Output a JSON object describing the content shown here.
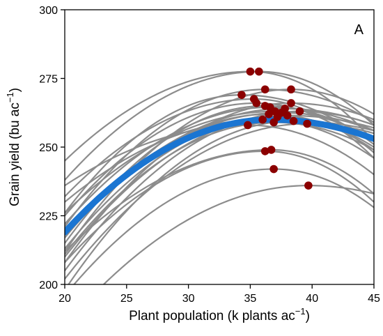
{
  "chart_data": {
    "type": "line",
    "panel_label": "A",
    "xlabel_main": "Plant population (k plants ac",
    "xlabel_sup": "−1",
    "xlabel_end": ")",
    "ylabel_main": "Grain yield (bu ac",
    "ylabel_sup": "−1",
    "ylabel_end": ")",
    "xlim": [
      20,
      45
    ],
    "ylim": [
      200,
      300
    ],
    "xticks": [
      "20",
      "25",
      "30",
      "35",
      "40",
      "45"
    ],
    "yticks": [
      "200",
      "225",
      "250",
      "275",
      "300"
    ],
    "grid": false,
    "colors": {
      "curves": "#8c8c8c",
      "mean_curve": "#1a75d2",
      "optima": "#8b0000"
    },
    "mean_curve": {
      "x_opt": 36.7,
      "y_opt": 260.0,
      "y_at_20": 219,
      "y_at_45": 253
    },
    "curves": [
      {
        "x_opt": 35.0,
        "y_opt": 277.5,
        "y_at_20": 245,
        "y_at_45": 252
      },
      {
        "x_opt": 35.7,
        "y_opt": 277.5,
        "y_at_20": 238,
        "y_at_45": 258
      },
      {
        "x_opt": 34.3,
        "y_opt": 269.0,
        "y_at_20": 226,
        "y_at_45": 251
      },
      {
        "x_opt": 35.3,
        "y_opt": 267.5,
        "y_at_20": 232,
        "y_at_45": 246
      },
      {
        "x_opt": 36.2,
        "y_opt": 271.0,
        "y_at_20": 221,
        "y_at_45": 259
      },
      {
        "x_opt": 38.3,
        "y_opt": 271.0,
        "y_at_20": 212,
        "y_at_45": 262
      },
      {
        "x_opt": 36.2,
        "y_opt": 265.0,
        "y_at_20": 215,
        "y_at_45": 252
      },
      {
        "x_opt": 36.6,
        "y_opt": 264.5,
        "y_at_20": 222,
        "y_at_45": 256
      },
      {
        "x_opt": 37.0,
        "y_opt": 263.0,
        "y_at_20": 226,
        "y_at_45": 253
      },
      {
        "x_opt": 36.5,
        "y_opt": 262.0,
        "y_at_20": 217,
        "y_at_45": 249
      },
      {
        "x_opt": 37.2,
        "y_opt": 261.0,
        "y_at_20": 213,
        "y_at_45": 250
      },
      {
        "x_opt": 38.3,
        "y_opt": 266.0,
        "y_at_20": 208,
        "y_at_45": 260
      },
      {
        "x_opt": 39.0,
        "y_opt": 263.0,
        "y_at_20": 205,
        "y_at_45": 258
      },
      {
        "x_opt": 36.9,
        "y_opt": 259.0,
        "y_at_20": 211,
        "y_at_45": 249
      },
      {
        "x_opt": 39.6,
        "y_opt": 258.5,
        "y_at_20": 202,
        "y_at_45": 255
      },
      {
        "x_opt": 36.2,
        "y_opt": 248.5,
        "y_at_20": 208,
        "y_at_45": 230
      },
      {
        "x_opt": 36.7,
        "y_opt": 249.0,
        "y_at_20": 212,
        "y_at_45": 233
      },
      {
        "x_opt": 36.9,
        "y_opt": 242.0,
        "y_at_20": 196,
        "y_at_45": 228
      },
      {
        "x_opt": 39.7,
        "y_opt": 236.0,
        "y_at_20": 185,
        "y_at_45": 233
      },
      {
        "x_opt": 36.0,
        "y_opt": 260.0,
        "y_at_20": 230,
        "y_at_45": 246
      },
      {
        "x_opt": 37.5,
        "y_opt": 262.5,
        "y_at_20": 220,
        "y_at_45": 256
      },
      {
        "x_opt": 35.5,
        "y_opt": 266.0,
        "y_at_20": 225,
        "y_at_45": 248
      },
      {
        "x_opt": 38.0,
        "y_opt": 261.5,
        "y_at_20": 210,
        "y_at_45": 257
      },
      {
        "x_opt": 37.8,
        "y_opt": 264.0,
        "y_at_20": 218,
        "y_at_45": 258
      },
      {
        "x_opt": 34.8,
        "y_opt": 258.0,
        "y_at_20": 236,
        "y_at_45": 240
      },
      {
        "x_opt": 38.5,
        "y_opt": 259.5,
        "y_at_20": 198,
        "y_at_45": 256
      }
    ]
  }
}
